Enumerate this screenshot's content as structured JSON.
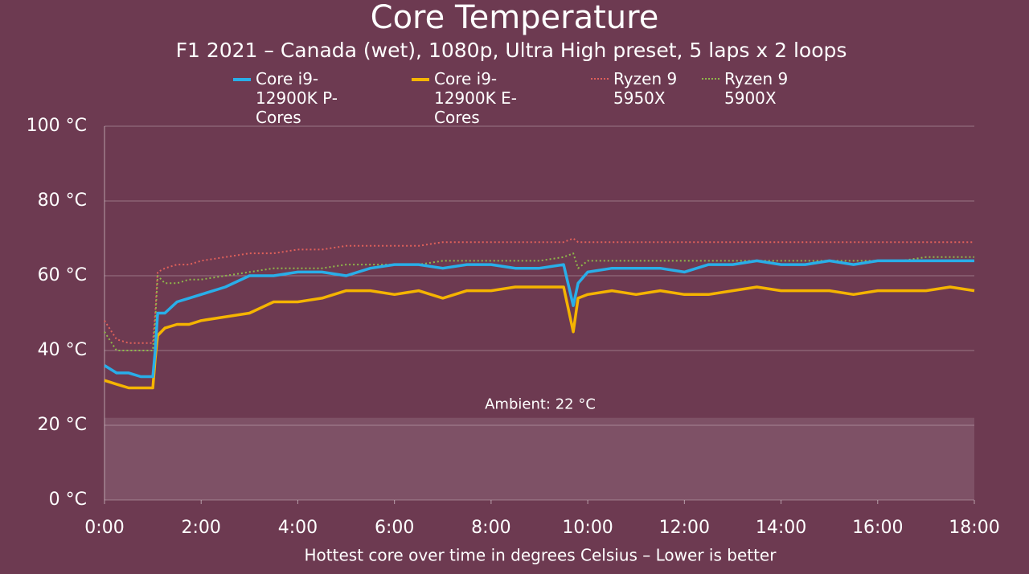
{
  "chart_data": {
    "type": "line",
    "title": "Core Temperature",
    "subtitle": "F1 2021 – Canada (wet), 1080p, Ultra High preset, 5 laps x 2 loops",
    "x_label": "Hottest core over time in degrees Celsius – Lower is better",
    "annotation": {
      "text": "Ambient: 22 °C",
      "value": 22
    },
    "x": [
      0,
      0.25,
      0.5,
      0.75,
      1,
      1.05,
      1.1,
      1.25,
      1.5,
      1.75,
      2,
      2.5,
      3,
      3.5,
      4,
      4.5,
      5,
      5.5,
      6,
      6.5,
      7,
      7.5,
      8,
      8.5,
      9,
      9.5,
      9.7,
      9.8,
      10,
      10.5,
      11,
      11.5,
      12,
      12.5,
      13,
      13.5,
      14,
      14.5,
      15,
      15.5,
      16,
      16.5,
      17,
      17.5,
      18
    ],
    "series": [
      {
        "name": "Core i9-12900K P-Cores",
        "color": "#29aee8",
        "style": "solid",
        "values": [
          36,
          34,
          34,
          33,
          33,
          40,
          50,
          50,
          53,
          54,
          55,
          57,
          60,
          60,
          61,
          61,
          60,
          62,
          63,
          63,
          62,
          63,
          63,
          62,
          62,
          63,
          52,
          58,
          61,
          62,
          62,
          62,
          61,
          63,
          63,
          64,
          63,
          63,
          64,
          63,
          64,
          64,
          64,
          64,
          64
        ]
      },
      {
        "name": "Core i9-12900K E-Cores",
        "color": "#f5b400",
        "style": "solid",
        "values": [
          32,
          31,
          30,
          30,
          30,
          38,
          44,
          46,
          47,
          47,
          48,
          49,
          50,
          53,
          53,
          54,
          56,
          56,
          55,
          56,
          54,
          56,
          56,
          57,
          57,
          57,
          45,
          54,
          55,
          56,
          55,
          56,
          55,
          55,
          56,
          57,
          56,
          56,
          56,
          55,
          56,
          56,
          56,
          57,
          56
        ]
      },
      {
        "name": "Ryzen 9 5950X",
        "color": "#e0605a",
        "style": "dotted",
        "values": [
          48,
          43,
          42,
          42,
          42,
          50,
          61,
          62,
          63,
          63,
          64,
          65,
          66,
          66,
          67,
          67,
          68,
          68,
          68,
          68,
          69,
          69,
          69,
          69,
          69,
          69,
          70,
          69,
          69,
          69,
          69,
          69,
          69,
          69,
          69,
          69,
          69,
          69,
          69,
          69,
          69,
          69,
          69,
          69,
          69
        ]
      },
      {
        "name": "Ryzen 9 5900X",
        "color": "#8fb84a",
        "style": "dotted",
        "values": [
          45,
          40,
          40,
          40,
          40,
          48,
          60,
          58,
          58,
          59,
          59,
          60,
          61,
          62,
          62,
          62,
          63,
          63,
          63,
          63,
          64,
          64,
          64,
          64,
          64,
          65,
          66,
          62,
          64,
          64,
          64,
          64,
          64,
          64,
          64,
          64,
          64,
          64,
          64,
          64,
          64,
          64,
          65,
          65,
          65
        ]
      }
    ],
    "xlim": [
      0,
      18
    ],
    "xticks": [
      {
        "value": 0,
        "label": "0:00"
      },
      {
        "value": 2,
        "label": "2:00"
      },
      {
        "value": 4,
        "label": "4:00"
      },
      {
        "value": 6,
        "label": "6:00"
      },
      {
        "value": 8,
        "label": "8:00"
      },
      {
        "value": 10,
        "label": "10:00"
      },
      {
        "value": 12,
        "label": "12:00"
      },
      {
        "value": 14,
        "label": "14:00"
      },
      {
        "value": 16,
        "label": "16:00"
      },
      {
        "value": 18,
        "label": "18:00"
      }
    ],
    "ylim": [
      0,
      100
    ],
    "yticks": [
      {
        "value": 0,
        "label": "0 °C"
      },
      {
        "value": 20,
        "label": "20 °C"
      },
      {
        "value": 40,
        "label": "40 °C"
      },
      {
        "value": 60,
        "label": "60 °C"
      },
      {
        "value": 80,
        "label": "80 °C"
      },
      {
        "value": 100,
        "label": "100 °C"
      }
    ],
    "grid": true
  }
}
